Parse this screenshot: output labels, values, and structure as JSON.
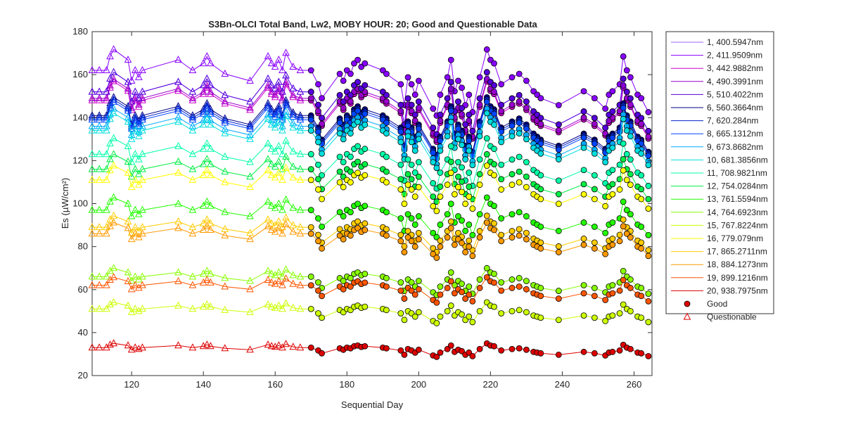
{
  "chart_data": {
    "type": "line",
    "title": "S3Bn-OLCI Total Band,  Lw2, MOBY HOUR: 20;  Good and Questionable Data",
    "xlabel": "Sequential Day",
    "ylabel": "Es (µW/cm²)",
    "xlim": [
      109,
      265
    ],
    "ylim": [
      20,
      180
    ],
    "xticks": [
      120,
      140,
      160,
      180,
      200,
      220,
      240,
      260
    ],
    "yticks": [
      20,
      40,
      60,
      80,
      100,
      120,
      140,
      160,
      180
    ],
    "grid": false,
    "legend_position": "outside-right",
    "good_start_day": 170,
    "x": [
      109,
      111,
      113,
      114,
      115,
      119,
      120,
      121,
      122,
      123,
      133,
      137,
      140,
      141,
      142,
      146,
      153,
      158,
      159,
      160,
      161,
      162,
      163,
      165,
      167,
      170,
      172,
      173,
      178,
      179,
      180,
      181,
      182,
      183,
      184,
      185,
      190,
      191,
      195,
      196,
      197,
      198,
      199,
      200,
      204,
      205,
      206,
      208,
      209,
      210,
      211,
      212,
      213,
      214,
      215,
      217,
      219,
      220,
      221,
      223,
      226,
      228,
      230,
      232,
      233,
      234,
      239,
      246,
      249,
      252,
      253,
      254,
      256,
      257,
      258,
      259,
      261,
      262,
      264
    ],
    "series": [
      {
        "name": "1, 400.5947nm",
        "color": "#9966ff",
        "base": 152
      },
      {
        "name": "2, 411.9509nm",
        "color": "#8800ff",
        "base": 162
      },
      {
        "name": "3, 442.9882nm",
        "color": "#cc00cc",
        "base": 148
      },
      {
        "name": "4, 490.3991nm",
        "color": "#9900cc",
        "base": 149
      },
      {
        "name": "5, 510.4022nm",
        "color": "#5500dd",
        "base": 152
      },
      {
        "name": "6, 560.3664nm",
        "color": "#000088",
        "base": 141
      },
      {
        "name": "7,  620.284nm",
        "color": "#0022cc",
        "base": 140
      },
      {
        "name": "8, 665.1312nm",
        "color": "#0044ff",
        "base": 139
      },
      {
        "name": "9, 673.8682nm",
        "color": "#00aaff",
        "base": 136
      },
      {
        "name": "10, 681.3856nm",
        "color": "#00dddd",
        "base": 134
      },
      {
        "name": "11, 708.9821nm",
        "color": "#00ffaa",
        "base": 123
      },
      {
        "name": "12, 754.0284nm",
        "color": "#00ee44",
        "base": 116
      },
      {
        "name": "13, 761.5594nm",
        "color": "#22ff00",
        "base": 97
      },
      {
        "name": "14, 764.6923nm",
        "color": "#88ff00",
        "base": 66
      },
      {
        "name": "15, 767.8224nm",
        "color": "#ccff00",
        "base": 51
      },
      {
        "name": "16,  779.079nm",
        "color": "#ffff00",
        "base": 111
      },
      {
        "name": "17, 865.2711nm",
        "color": "#ffcc00",
        "base": 89
      },
      {
        "name": "18, 884.1273nm",
        "color": "#ff9900",
        "base": 86
      },
      {
        "name": "19, 899.1216nm",
        "color": "#ff5500",
        "base": 62
      },
      {
        "name": "20, 938.7975nm",
        "color": "#dd0000",
        "base": 33
      }
    ],
    "shape": [
      1.0,
      1.0,
      1.0,
      1.04,
      1.06,
      1.03,
      0.97,
      1.0,
      0.98,
      1.0,
      1.03,
      1.0,
      1.02,
      1.04,
      1.02,
      0.99,
      0.97,
      1.04,
      1.02,
      1.01,
      1.03,
      1.0,
      1.05,
      1.01,
      1.0,
      1.0,
      0.96,
      0.92,
      0.99,
      0.97,
      1.0,
      0.99,
      1.02,
      1.03,
      1.01,
      1.02,
      1.0,
      0.99,
      0.96,
      0.9,
      0.98,
      0.96,
      0.93,
      0.97,
      0.89,
      0.87,
      0.93,
      0.98,
      1.03,
      0.94,
      0.97,
      0.95,
      0.9,
      0.93,
      0.88,
      0.98,
      1.06,
      1.03,
      1.02,
      0.96,
      0.98,
      0.99,
      0.97,
      0.94,
      0.93,
      0.92,
      0.9,
      0.94,
      0.92,
      0.89,
      0.93,
      0.94,
      0.96,
      1.04,
      1.0,
      0.98,
      0.93,
      0.92,
      0.88
    ],
    "markers": {
      "good": "Good",
      "questionable": "Questionable"
    }
  }
}
